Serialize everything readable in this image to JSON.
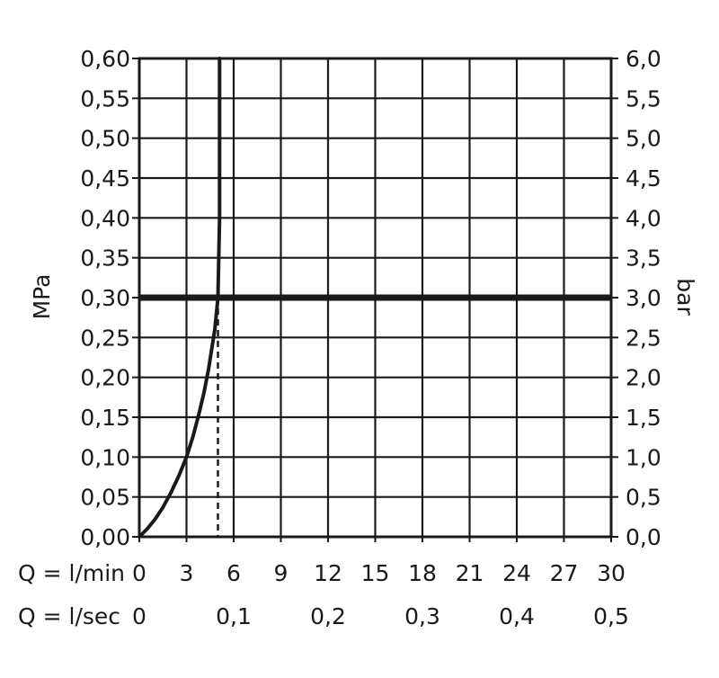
{
  "chart_data": {
    "type": "line",
    "y_left_label": "MPa",
    "y_right_label": "bar",
    "x_primary_label": "Q = l/min",
    "x_secondary_label": "Q = l/sec",
    "xlim": [
      0,
      30
    ],
    "ylim_mpa": [
      0,
      0.6
    ],
    "ylim_bar": [
      0,
      6.0
    ],
    "grid": true,
    "y_left_ticks": [
      "0,00",
      "0,05",
      "0,10",
      "0,15",
      "0,20",
      "0,25",
      "0,30",
      "0,35",
      "0,40",
      "0,45",
      "0,50",
      "0,55",
      "0,60"
    ],
    "y_right_ticks": [
      "0,0",
      "0,5",
      "1,0",
      "1,5",
      "2,0",
      "2,5",
      "3,0",
      "3,5",
      "4,0",
      "4,5",
      "5,0",
      "5,5",
      "6,0"
    ],
    "x_primary_ticks": [
      "0",
      "3",
      "6",
      "9",
      "12",
      "15",
      "18",
      "21",
      "24",
      "27",
      "30"
    ],
    "x_secondary_ticks": [
      {
        "label": "0",
        "lpm": 0
      },
      {
        "label": "0,1",
        "lpm": 6
      },
      {
        "label": "0,2",
        "lpm": 12
      },
      {
        "label": "0,3",
        "lpm": 18
      },
      {
        "label": "0,4",
        "lpm": 24
      },
      {
        "label": "0,5",
        "lpm": 30
      }
    ],
    "series": [
      {
        "x": [
          0,
          0.5,
          1,
          1.5,
          2,
          2.5,
          3,
          3.4,
          3.8,
          4.1,
          4.4,
          4.6,
          4.8,
          4.9,
          5.0,
          5.05,
          5.1,
          5.1
        ],
        "y": [
          0,
          0.01,
          0.022,
          0.037,
          0.055,
          0.076,
          0.1,
          0.125,
          0.155,
          0.18,
          0.21,
          0.235,
          0.26,
          0.28,
          0.3,
          0.35,
          0.4,
          0.6
        ]
      }
    ],
    "reference_line_y": 0.3,
    "reference_flow_x": 5
  }
}
